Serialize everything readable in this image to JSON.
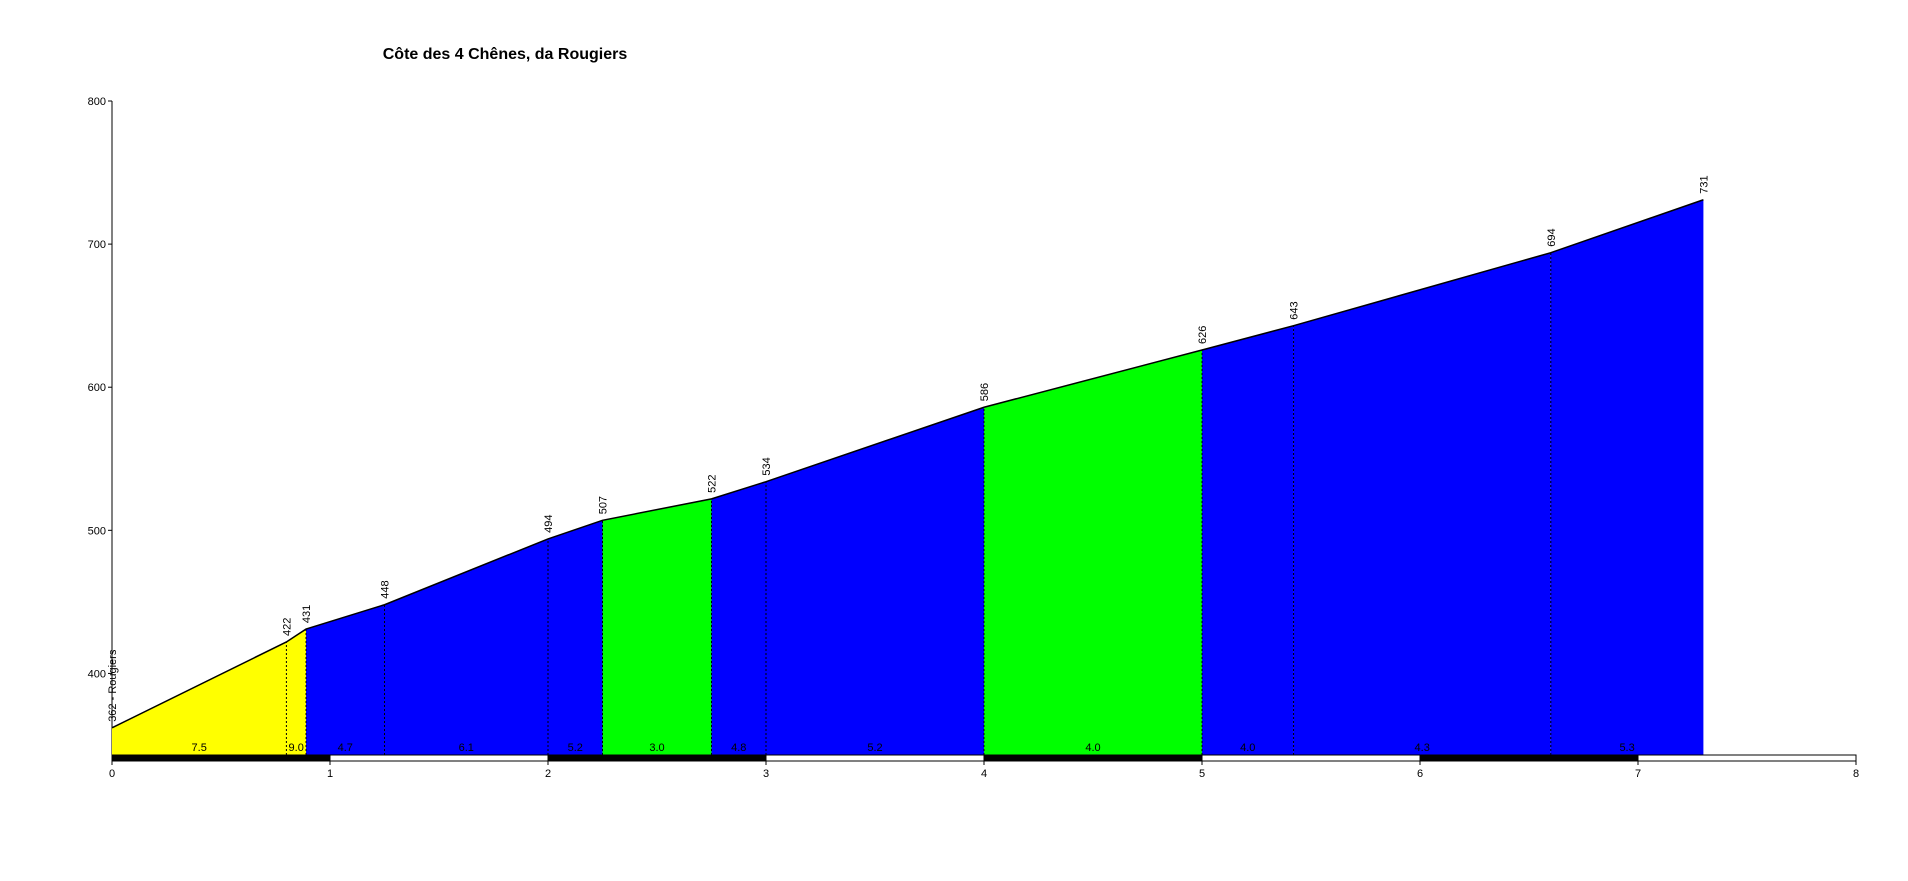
{
  "chart_data": {
    "type": "elevation-profile",
    "title": "Côte des 4 Chênes, da Rougiers",
    "x": [
      0,
      0.8,
      0.89,
      1.25,
      2,
      2.25,
      2.75,
      3,
      4,
      5,
      5.42,
      6.6,
      7.3
    ],
    "series": [
      {
        "name": "Rougiers",
        "color": "#000000",
        "values": [
          362,
          422,
          431,
          448,
          494,
          507,
          522,
          534,
          586,
          626,
          643,
          694,
          731
        ],
        "value_labels": [
          "362 - Rougiers",
          "422",
          "431",
          "448",
          "494",
          "507",
          "522",
          "534",
          "586",
          "626",
          "643",
          "694",
          "731"
        ]
      }
    ],
    "gradients": [
      7.5,
      9,
      4.7,
      6.1,
      5.2,
      3,
      4.8,
      5.2,
      4,
      4,
      4.3,
      5.3
    ],
    "gradient_labels": [
      "7.5",
      "9.0",
      "4.7",
      "6.1",
      "5.2",
      "3.0",
      "4.8",
      "5.2",
      "4.0",
      "4.0",
      "4.3",
      "5.3"
    ],
    "segment_colors": [
      "#ffff00",
      "#ffff00",
      "#0000ff",
      "#0000ff",
      "#0000ff",
      "#00ff00",
      "#0000ff",
      "#0000ff",
      "#00ff00",
      "#0000ff",
      "#0000ff",
      "#0000ff"
    ],
    "xlim": [
      0,
      8
    ],
    "xticks": [
      0,
      1,
      2,
      3,
      4,
      5,
      6,
      7,
      8
    ],
    "ylim": [
      343,
      800
    ],
    "yticks": [
      400,
      500,
      600,
      700,
      800
    ]
  }
}
